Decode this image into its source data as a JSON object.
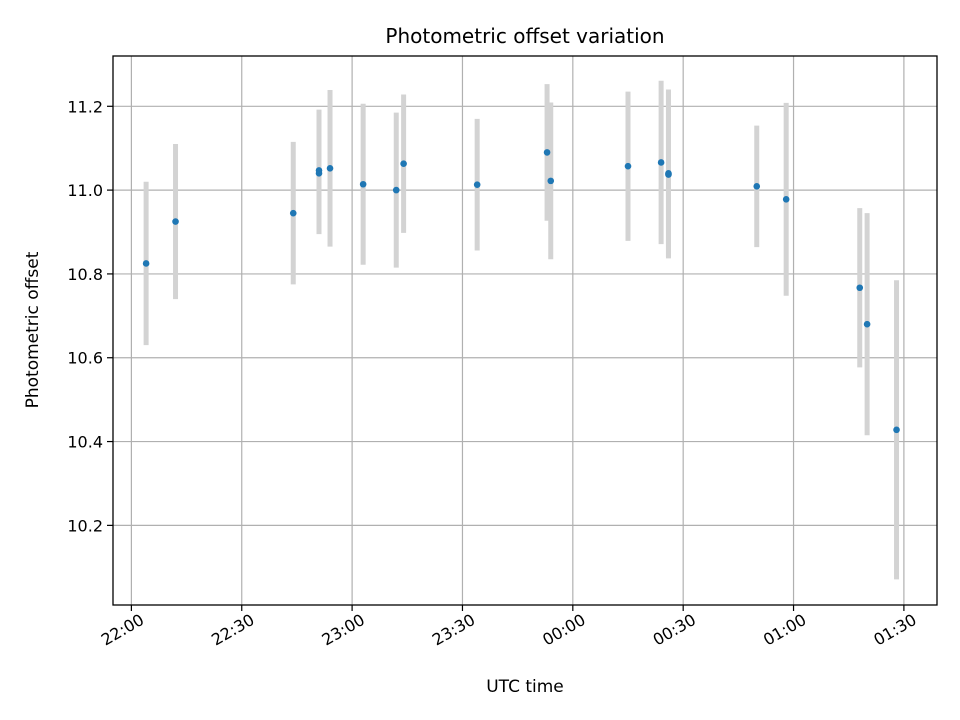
{
  "chart_data": {
    "type": "scatter",
    "title": "Photometric offset variation",
    "xlabel": "UTC time",
    "ylabel": "Photometric offset",
    "grid": true,
    "x_unit": "UTC time",
    "x_ticks": [
      "22:00",
      "22:30",
      "23:00",
      "23:30",
      "00:00",
      "00:30",
      "01:00",
      "01:30"
    ],
    "y_ticks": [
      "10.2",
      "10.4",
      "10.6",
      "10.8",
      "11.0",
      "11.2"
    ],
    "xlim": [
      "21:55",
      "01:39"
    ],
    "ylim": [
      10.01,
      11.32
    ],
    "colors": {
      "points": "#1f77b4",
      "error_bars": "#d3d3d3",
      "grid": "#b0b0b0"
    },
    "series": [
      {
        "points": [
          {
            "x": "22:04",
            "y": 10.825,
            "err": 0.195
          },
          {
            "x": "22:12",
            "y": 10.925,
            "err": 0.185
          },
          {
            "x": "22:44",
            "y": 10.945,
            "err": 0.17
          },
          {
            "x": "22:51",
            "y": 11.04,
            "err": 0.145
          },
          {
            "x": "22:51",
            "y": 11.047,
            "err": 0.145
          },
          {
            "x": "22:54",
            "y": 11.052,
            "err": 0.187
          },
          {
            "x": "23:03",
            "y": 11.014,
            "err": 0.192
          },
          {
            "x": "23:12",
            "y": 11.0,
            "err": 0.185
          },
          {
            "x": "23:14",
            "y": 11.063,
            "err": 0.165
          },
          {
            "x": "23:34",
            "y": 11.013,
            "err": 0.157
          },
          {
            "x": "23:53",
            "y": 11.09,
            "err": 0.163
          },
          {
            "x": "23:54",
            "y": 11.022,
            "err": 0.187
          },
          {
            "x": "00:15",
            "y": 11.057,
            "err": 0.178
          },
          {
            "x": "00:24",
            "y": 11.066,
            "err": 0.195
          },
          {
            "x": "00:26",
            "y": 11.04,
            "err": 0.2
          },
          {
            "x": "00:26",
            "y": 11.037,
            "err": 0.2
          },
          {
            "x": "00:50",
            "y": 11.009,
            "err": 0.145
          },
          {
            "x": "00:58",
            "y": 10.978,
            "err": 0.23
          },
          {
            "x": "01:18",
            "y": 10.767,
            "err": 0.19
          },
          {
            "x": "01:20",
            "y": 10.68,
            "err": 0.265
          },
          {
            "x": "01:28",
            "y": 10.428,
            "err": 0.357
          }
        ]
      }
    ]
  }
}
